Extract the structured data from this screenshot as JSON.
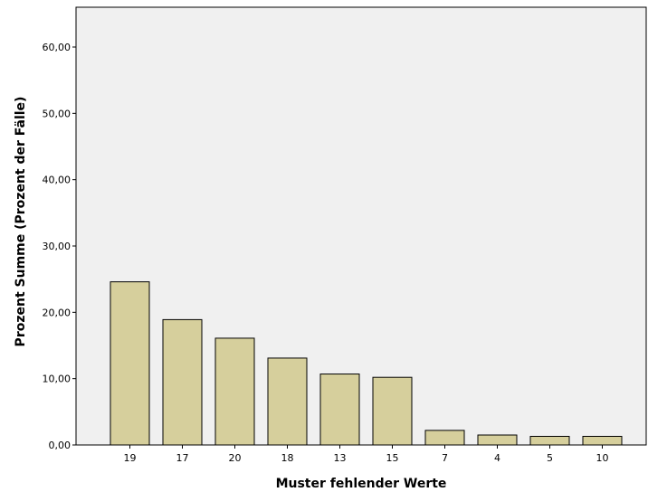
{
  "chart_data": {
    "type": "bar",
    "title": "",
    "categories": [
      "19",
      "17",
      "20",
      "18",
      "13",
      "15",
      "7",
      "4",
      "5",
      "10"
    ],
    "values": [
      24.6,
      18.9,
      16.1,
      13.1,
      10.7,
      10.2,
      2.2,
      1.5,
      1.3,
      1.3
    ],
    "xlabel": "Muster fehlender Werte",
    "ylabel": "Prozent Summe (Prozent der Fälle)",
    "ylim": [
      0,
      66
    ],
    "yticks": [
      0,
      10,
      20,
      30,
      40,
      50,
      60
    ],
    "ytick_labels": [
      "0,00",
      "10,00",
      "20,00",
      "30,00",
      "40,00",
      "50,00",
      "60,00"
    ],
    "grid": false,
    "colors": {
      "bar_fill": "#d6cf9c",
      "bar_stroke": "#000000",
      "plot_background": "#f0f0f0"
    }
  }
}
